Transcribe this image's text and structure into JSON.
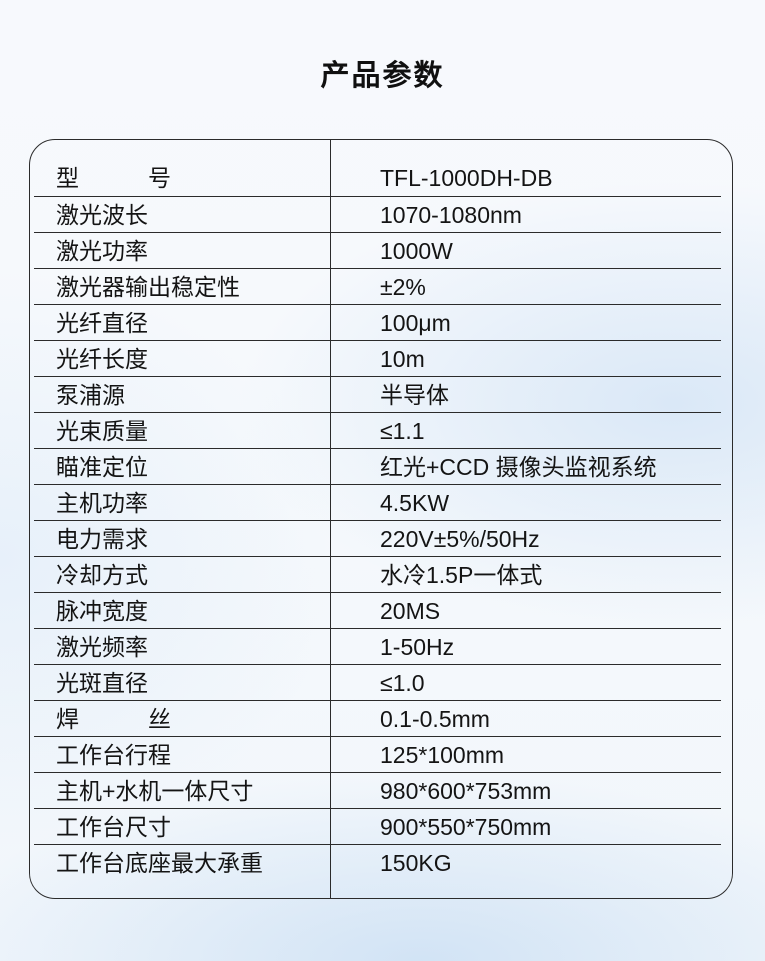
{
  "page": {
    "title": "产品参数"
  },
  "colors": {
    "border": "#2b2b2b",
    "text": "#141414",
    "background_tint": "#e7f0fa"
  },
  "table": {
    "rows": [
      {
        "label": "型　　　号",
        "value": "TFL-1000DH-DB"
      },
      {
        "label": "激光波长",
        "value": "1070-1080nm"
      },
      {
        "label": "激光功率",
        "value": "1000W"
      },
      {
        "label": "激光器输出稳定性",
        "value": "±2%"
      },
      {
        "label": "光纤直径",
        "value": "100μm"
      },
      {
        "label": "光纤长度",
        "value": "10m"
      },
      {
        "label": "泵浦源",
        "value": "半导体"
      },
      {
        "label": "光束质量",
        "value": "≤1.1"
      },
      {
        "label": "瞄准定位",
        "value": "红光+CCD 摄像头监视系统"
      },
      {
        "label": "主机功率",
        "value": "4.5KW"
      },
      {
        "label": "电力需求",
        "value": "220V±5%/50Hz"
      },
      {
        "label": "冷却方式",
        "value": "水冷1.5P一体式"
      },
      {
        "label": "脉冲宽度",
        "value": "20MS"
      },
      {
        "label": "激光频率",
        "value": "1-50Hz"
      },
      {
        "label": "光斑直径",
        "value": "≤1.0"
      },
      {
        "label": "焊　　　丝",
        "value": "0.1-0.5mm"
      },
      {
        "label": "工作台行程",
        "value": "125*100mm"
      },
      {
        "label": "主机+水机一体尺寸",
        "value": "980*600*753mm"
      },
      {
        "label": "工作台尺寸",
        "value": "900*550*750mm"
      },
      {
        "label": "工作台底座最大承重",
        "value": "150KG"
      }
    ]
  }
}
